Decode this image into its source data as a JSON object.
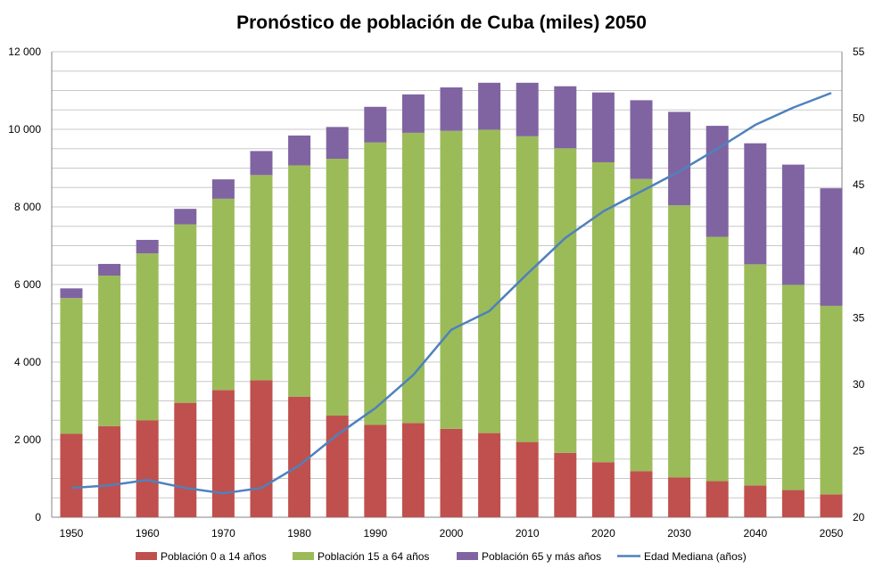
{
  "chart_data": {
    "type": "bar",
    "title": "Pronóstico de población de Cuba (miles) 2050",
    "x": [
      1950,
      1955,
      1960,
      1965,
      1970,
      1975,
      1980,
      1985,
      1990,
      1995,
      2000,
      2005,
      2010,
      2015,
      2020,
      2025,
      2030,
      2035,
      2040,
      2045,
      2050
    ],
    "xticks": [
      "1950",
      "1960",
      "1970",
      "1980",
      "1990",
      "2000",
      "2010",
      "2020",
      "2030",
      "2040",
      "2050"
    ],
    "ylim_left": [
      0,
      12000
    ],
    "yticks_left": [
      "0",
      "2 000",
      "4 000",
      "6 000",
      "8 000",
      "10 000",
      "12 000"
    ],
    "ylim_right": [
      20,
      55
    ],
    "yticks_right": [
      "20",
      "25",
      "30",
      "35",
      "40",
      "45",
      "50",
      "55"
    ],
    "grid": true,
    "legend_position": "bottom",
    "series": [
      {
        "name": "Población 0 a 14 años",
        "kind": "bar",
        "color": "#c0504d",
        "values": [
          2150,
          2350,
          2500,
          2950,
          3280,
          3530,
          3110,
          2620,
          2380,
          2430,
          2280,
          2170,
          1940,
          1660,
          1420,
          1190,
          1030,
          930,
          820,
          700,
          590
        ]
      },
      {
        "name": "Población 15 a 64 años",
        "kind": "bar",
        "color": "#9bbb59",
        "values": [
          3500,
          3880,
          4300,
          4600,
          4930,
          5290,
          5960,
          6620,
          7280,
          7480,
          7680,
          7820,
          7880,
          7850,
          7730,
          7530,
          7010,
          6300,
          5700,
          5290,
          4860
        ]
      },
      {
        "name": "Población 65 y más años",
        "kind": "bar",
        "color": "#8064a2",
        "values": [
          250,
          300,
          350,
          400,
          500,
          620,
          770,
          820,
          920,
          990,
          1120,
          1210,
          1380,
          1600,
          1800,
          2030,
          2410,
          2860,
          3120,
          3100,
          3030
        ]
      },
      {
        "name": "Edad Mediana (años)",
        "kind": "line",
        "axis": "right",
        "color": "#4f81bd",
        "values": [
          22.2,
          22.4,
          22.8,
          22.2,
          21.8,
          22.2,
          23.9,
          26.2,
          28.2,
          30.7,
          34.1,
          35.5,
          38.3,
          41.0,
          43.0,
          44.5,
          46.0,
          47.7,
          49.5,
          50.8,
          51.9
        ]
      }
    ]
  }
}
